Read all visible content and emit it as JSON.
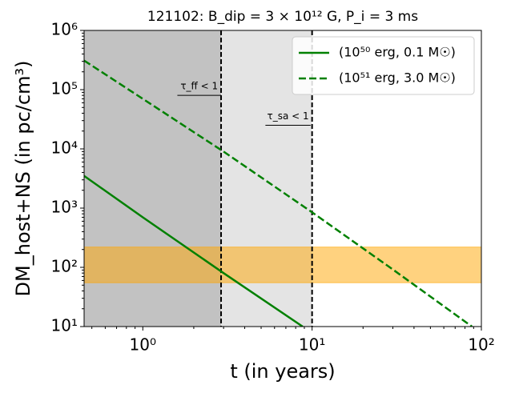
{
  "chart_data": {
    "type": "line",
    "title": "121102: B_dip = 3 × 10¹² G, P_i = 3 ms",
    "x_label": "t (in years)",
    "y_label": "DM_host+NS (in pc/cm³)",
    "x_scale": "log",
    "y_scale": "log",
    "xlim": [
      0.45,
      100
    ],
    "ylim": [
      10,
      1000000
    ],
    "xticks": [
      {
        "value": 1,
        "label": "10⁰"
      },
      {
        "value": 10,
        "label": "10¹"
      },
      {
        "value": 100,
        "label": "10²"
      }
    ],
    "yticks": [
      {
        "value": 10,
        "label": "10¹"
      },
      {
        "value": 100,
        "label": "10²"
      },
      {
        "value": 1000,
        "label": "10³"
      },
      {
        "value": 10000,
        "label": "10⁴"
      },
      {
        "value": 100000,
        "label": "10⁵"
      },
      {
        "value": 1000000,
        "label": "10⁶"
      }
    ],
    "legend_position": "upper right",
    "series": [
      {
        "name": "(10⁵⁰ erg, 0.1 M☉)",
        "color": "#008000",
        "linestyle": "solid",
        "x": [
          0.45,
          1,
          3,
          8.8
        ],
        "values": [
          3500,
          700,
          80,
          10
        ]
      },
      {
        "name": "(10⁵¹ erg, 3.0 M☉)",
        "color": "#008000",
        "linestyle": "dashed",
        "x": [
          0.45,
          1,
          3,
          10,
          30,
          88
        ],
        "values": [
          310000,
          70000,
          9000,
          850,
          92,
          10
        ]
      }
    ],
    "x_spans": [
      {
        "x": [
          0.45,
          2.9
        ],
        "color": "#c2c2c2"
      },
      {
        "x": [
          2.9,
          10
        ],
        "color": "#e4e4e4"
      }
    ],
    "y_band": {
      "y": [
        55,
        220
      ],
      "color": "#ffa500"
    },
    "vlines": [
      2.9,
      10
    ],
    "annotations": [
      {
        "text": "τ_ff < 1",
        "x": [
          1.6,
          2.9
        ],
        "y": 80000
      },
      {
        "text": "τ_sa < 1",
        "x": [
          5.3,
          9.8
        ],
        "y": 25000
      }
    ]
  }
}
